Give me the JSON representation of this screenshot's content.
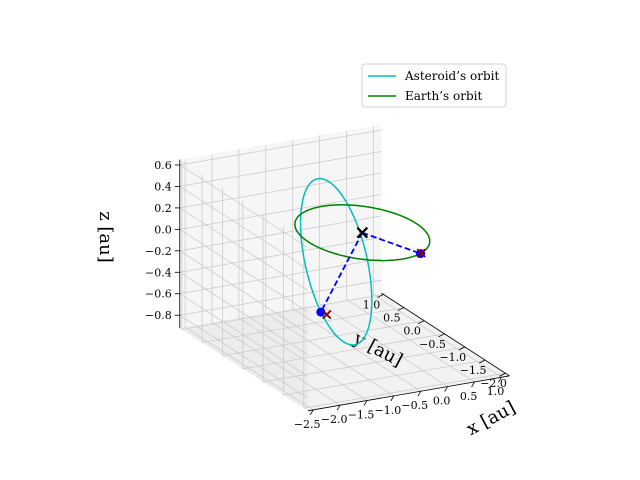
{
  "chart_data": {
    "type": "line",
    "projection": "3d",
    "title": "",
    "xlabel": "$x$ [au]",
    "ylabel": "$y$ [au]",
    "zlabel": "$z$ [au]",
    "xlabel_text": "x [au]",
    "ylabel_text": "y [au]",
    "zlabel_text": "z [au]",
    "x_ticks": [
      "−2.5",
      "−2.0",
      "−1.5",
      "−1.0",
      "−0.5",
      "0.0",
      "0.5",
      "1.0"
    ],
    "y_ticks": [
      "1.0",
      "0.5",
      "0.0",
      "−0.5",
      "−1.0",
      "−1.5",
      "−2.0"
    ],
    "z_ticks": [
      "0.6",
      "0.4",
      "0.2",
      "0.0",
      "−0.2",
      "−0.4",
      "−0.6",
      "−0.8"
    ],
    "xlim": [
      -2.6,
      1.15
    ],
    "ylim": [
      -2.1,
      1.05
    ],
    "zlim": [
      -0.92,
      0.65
    ],
    "grid": true,
    "legend_position": "top-right",
    "series": [
      {
        "name": "Asteroid’s orbit",
        "kind": "ellipse",
        "color": "#00bfbf",
        "center": [
          -0.75,
          -0.35,
          -0.12
        ],
        "axis_u": [
          1.5,
          1.3,
          -0.3
        ],
        "axis_v": [
          -0.3,
          0.15,
          0.75
        ]
      },
      {
        "name": "Earth’s orbit",
        "kind": "ellipse",
        "color": "#008000",
        "center": [
          0.0,
          0.0,
          0.0
        ],
        "axis_u": [
          1.0,
          0.0,
          0.0
        ],
        "axis_v": [
          0.0,
          1.0,
          0.0
        ]
      }
    ],
    "markers": [
      {
        "name": "sun",
        "symbol": "x",
        "color": "#000000",
        "point": [
          0.0,
          0.0,
          0.0
        ]
      },
      {
        "name": "asteroid-position",
        "symbol": "o",
        "color": "#0000ff",
        "point": [
          -0.34,
          0.57,
          -0.85
        ]
      },
      {
        "name": "asteroid-x-marker",
        "symbol": "x",
        "color": "#8b0000",
        "point": [
          -0.26,
          0.53,
          -0.87
        ]
      },
      {
        "name": "earth-position",
        "symbol": "o",
        "color": "#0000ff",
        "point": [
          0.38,
          -0.93,
          0.0
        ]
      },
      {
        "name": "earth-x-marker",
        "symbol": "x",
        "color": "#8b0000",
        "point": [
          0.4,
          -0.92,
          0.0
        ]
      }
    ],
    "connectors": [
      {
        "name": "sun-asteroid-line",
        "style": "dashed",
        "color": "#0000ff",
        "from": [
          0.0,
          0.0,
          0.0
        ],
        "to": [
          -0.34,
          0.57,
          -0.85
        ]
      },
      {
        "name": "sun-earth-line",
        "style": "dashed",
        "color": "#0000ff",
        "from": [
          0.0,
          0.0,
          0.0
        ],
        "to": [
          0.38,
          -0.93,
          0.0
        ]
      }
    ]
  }
}
